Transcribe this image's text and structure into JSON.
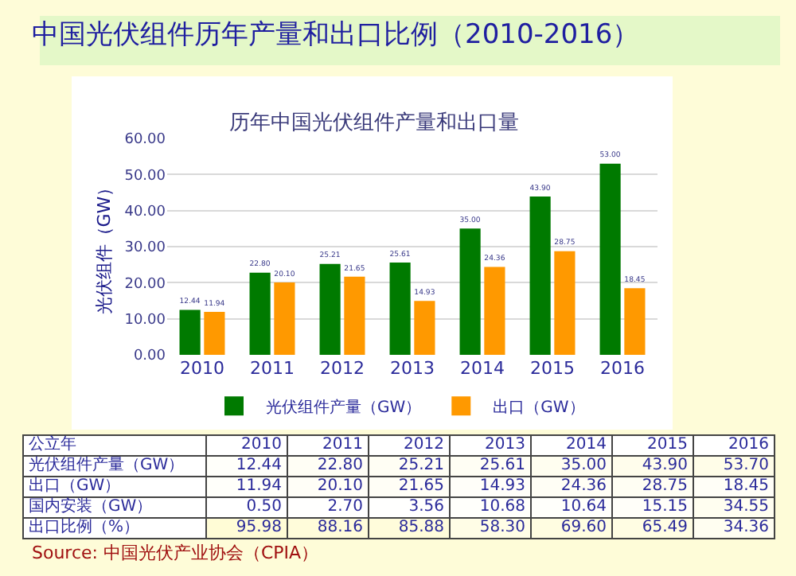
{
  "chart_data": [
    {
      "type": "bar",
      "title": "中国光伏组件历年产量和出口比例（2010-2016）",
      "subtitle": "历年中国光伏组件产量和出口量",
      "ylabel": "光伏组件（GW）",
      "categories": [
        "2010",
        "2011",
        "2012",
        "2013",
        "2014",
        "2015",
        "2016"
      ],
      "series": [
        {
          "name": "光伏组件产量（GW）",
          "color": "#007a00",
          "values": [
            12.44,
            22.8,
            25.21,
            25.61,
            35.0,
            43.9,
            53.0
          ],
          "value_labels": [
            "12.44",
            "22.80",
            "25.21",
            "25.61",
            "35.00",
            "43.90",
            "53.00"
          ]
        },
        {
          "name": "出口（GW）",
          "color": "#ff9900",
          "values": [
            11.94,
            20.1,
            21.65,
            14.93,
            24.36,
            28.75,
            18.45
          ],
          "value_labels": [
            "11.94",
            "20.10",
            "21.65",
            "14.93",
            "24.36",
            "28.75",
            "18.45"
          ]
        }
      ],
      "ylim": [
        0,
        60
      ],
      "yticks": [
        {
          "value": 0,
          "label": "0.00"
        },
        {
          "value": 10,
          "label": "10.00"
        },
        {
          "value": 20,
          "label": "20.00"
        },
        {
          "value": 30,
          "label": "30.00"
        },
        {
          "value": 40,
          "label": "40.00"
        },
        {
          "value": 50,
          "label": "50.00"
        },
        {
          "value": 60,
          "label": "60.00"
        }
      ],
      "grid": "y",
      "legend": "bottom"
    },
    {
      "type": "heatmap",
      "xlabel": "公立年",
      "categories": [
        "2010",
        "2011",
        "2012",
        "2013",
        "2014",
        "2015",
        "2016"
      ],
      "y_categories": [
        "光伏组件产量（GW）",
        "出口（GW）",
        "国内安装（GW）",
        "出口比例（%）"
      ],
      "cells": [
        [
          12.44,
          22.8,
          25.21,
          25.61,
          35.0,
          43.9,
          53.7
        ],
        [
          11.94,
          20.1,
          21.65,
          14.93,
          24.36,
          28.75,
          18.45
        ],
        [
          0.5,
          2.7,
          3.56,
          10.68,
          10.64,
          15.15,
          34.55
        ],
        [
          95.98,
          88.16,
          85.88,
          58.3,
          69.6,
          65.49,
          34.36
        ]
      ],
      "cell_labels": [
        [
          "12.44",
          "22.80",
          "25.21",
          "25.61",
          "35.00",
          "43.90",
          "53.70"
        ],
        [
          "11.94",
          "20.10",
          "21.65",
          "14.93",
          "24.36",
          "28.75",
          "18.45"
        ],
        [
          "0.50",
          "2.70",
          "3.56",
          "10.68",
          "10.64",
          "15.15",
          "34.55"
        ],
        [
          "95.98",
          "88.16",
          "85.88",
          "58.30",
          "69.60",
          "65.49",
          "34.36"
        ]
      ],
      "annotations": [
        "Source: 中国光伏产业协会（CPIA）"
      ]
    }
  ]
}
